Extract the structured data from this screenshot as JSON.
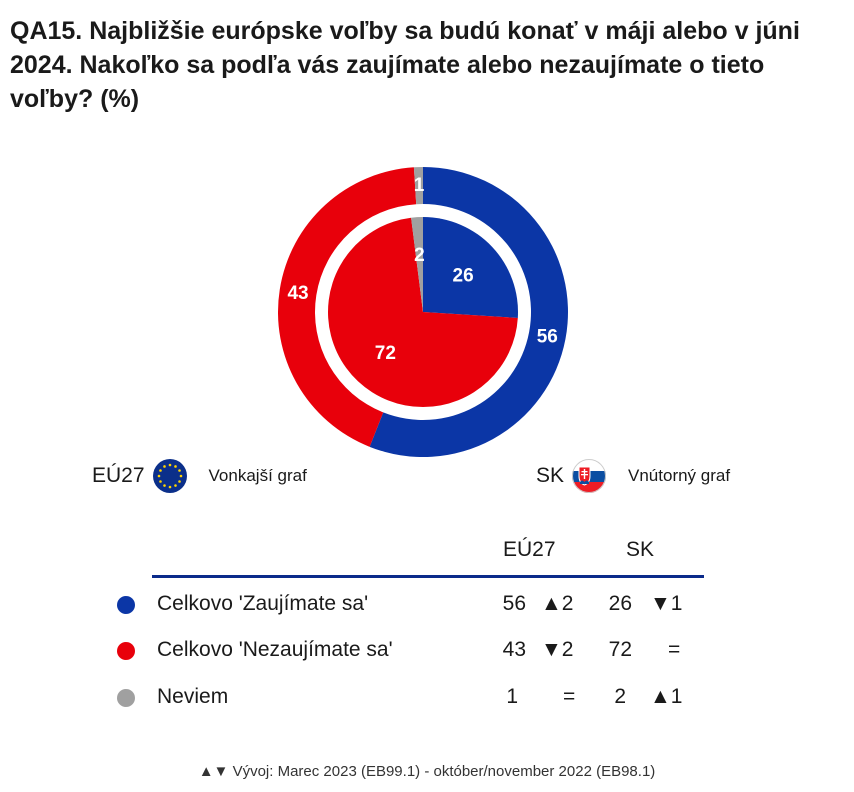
{
  "title": "QA15. Najbližšie európske voľby sa budú konať v máji alebo v júni 2024. Nakoľko sa podľa vás zaujímate alebo nezaujímate o tieto voľby? (%)",
  "legend": {
    "outer": {
      "code": "EÚ27",
      "label": "Vonkajší graf",
      "flag": "eu-flag-icon"
    },
    "inner": {
      "code": "SK",
      "label": "Vnútorný graf",
      "flag": "slovakia-flag-icon"
    }
  },
  "table": {
    "columns": [
      "EÚ27",
      "SK"
    ],
    "rows": [
      {
        "label": "Celkovo 'Zaujímate sa'",
        "color": "#0b36a6",
        "eu": "56",
        "eu_change": "▲2",
        "sk": "26",
        "sk_change": "▼1"
      },
      {
        "label": "Celkovo 'Nezaujímate sa'",
        "color": "#e8000b",
        "eu": "43",
        "eu_change": "▼2",
        "sk": "72",
        "sk_change": "="
      },
      {
        "label": "Neviem",
        "color": "#a0a0a0",
        "eu": "1",
        "eu_change": "=",
        "sk": "2",
        "sk_change": "▲1"
      }
    ]
  },
  "footer": "▲▼ Vývoj: Marec 2023 (EB99.1) - október/november 2022 (EB98.1)",
  "chart_data": {
    "type": "pie",
    "title": "QA15. Najbližšie európske voľby sa budú konať v máji alebo v júni 2024. Nakoľko sa podľa vás zaujímate alebo nezaujímate o tieto voľby? (%)",
    "categories": [
      "Celkovo 'Zaujímate sa'",
      "Celkovo 'Nezaujímate sa'",
      "Neviem"
    ],
    "colors": [
      "#0b36a6",
      "#e8000b",
      "#a0a0a0"
    ],
    "series": [
      {
        "name": "EÚ27",
        "values": [
          56,
          43,
          1
        ]
      },
      {
        "name": "SK",
        "values": [
          26,
          72,
          2
        ]
      }
    ]
  }
}
